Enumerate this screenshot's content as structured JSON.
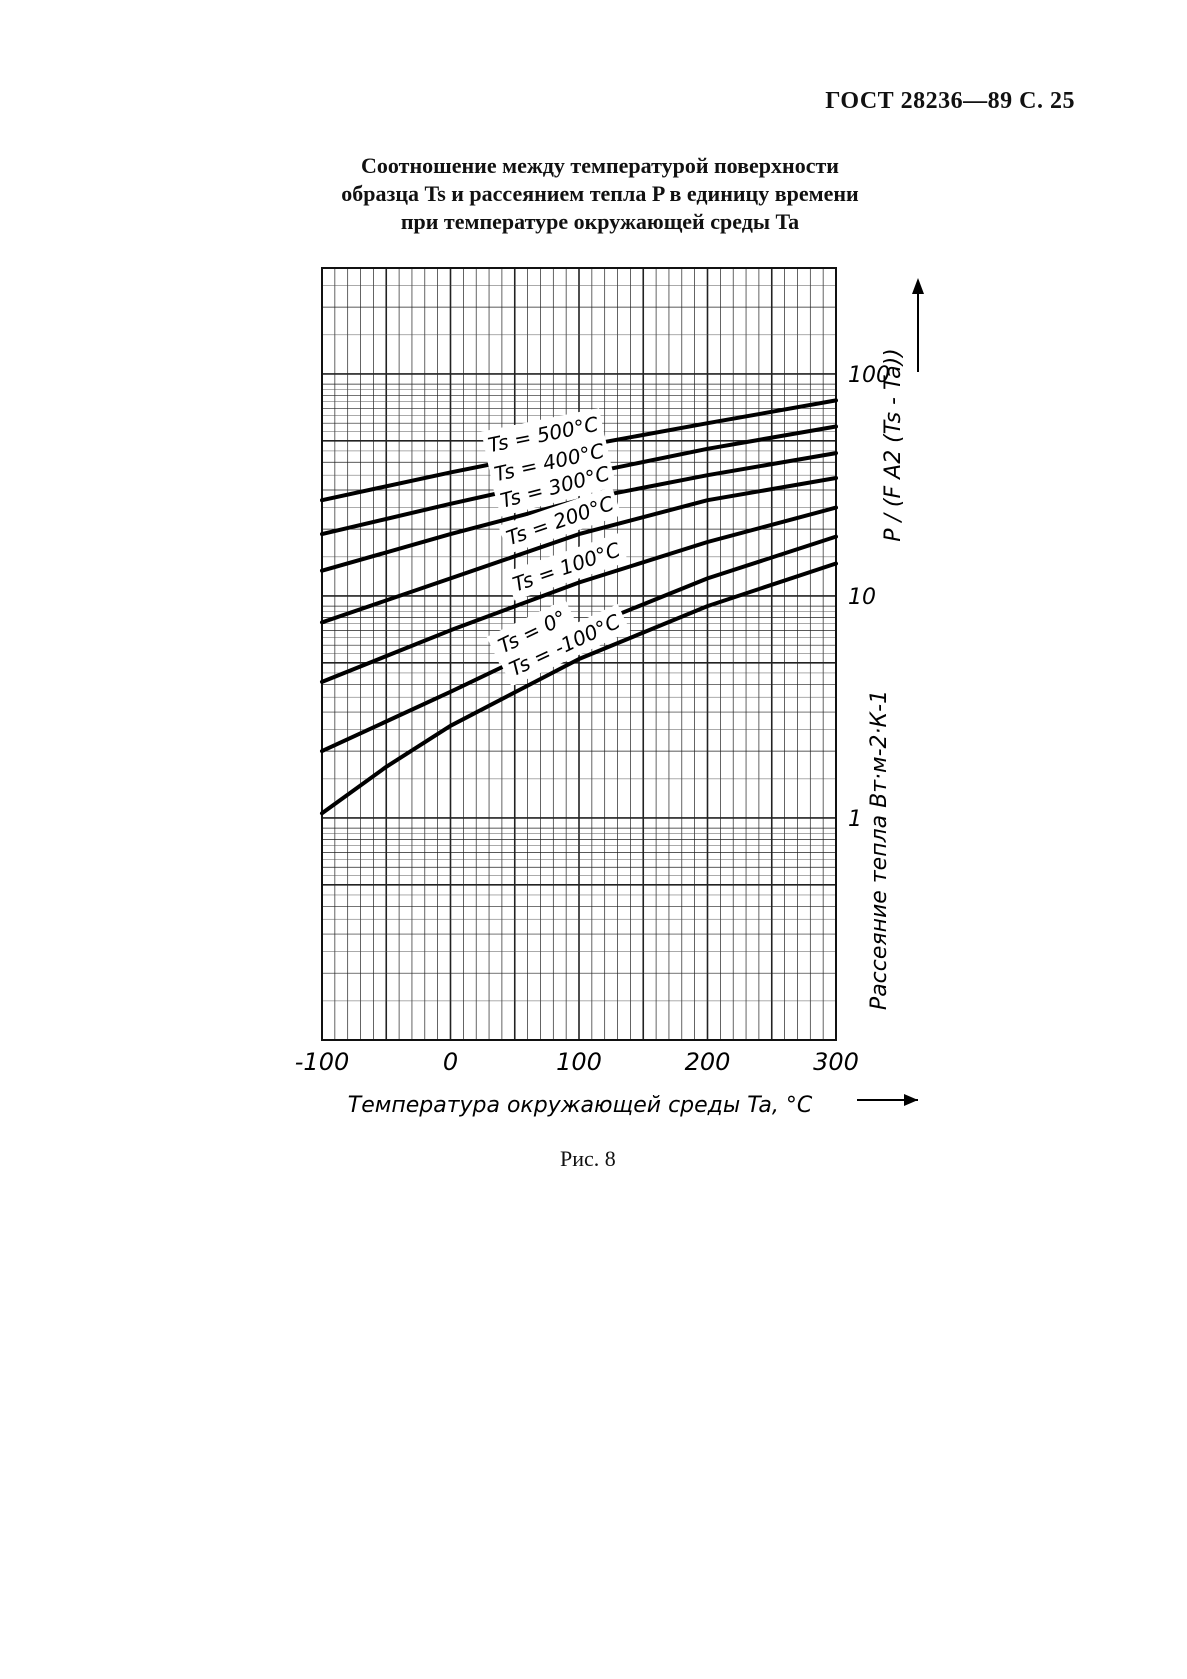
{
  "header": "ГОСТ 28236—89 С. 25",
  "title_lines": [
    "Соотношение между температурой поверхности",
    "образца Ts и рассеянием тепла P в единицу времени",
    "при температуре окружающей среды Ta"
  ],
  "caption": "Рис. 8",
  "chart_data": {
    "type": "line",
    "xlabel": "Температура окружающей среды Ta, °C",
    "ylabel": "Рассеяние тепла Вт·м-2·К-1",
    "ylabel_formula": "P / (F A2 (Ts - Ta))",
    "xlim": [
      -100,
      300
    ],
    "ylim": [
      0.1,
      300
    ],
    "y_scale": "log",
    "x_ticks": [
      "-100",
      "0",
      "100",
      "200",
      "300"
    ],
    "y_ticks": [
      "1",
      "10",
      "100"
    ],
    "grid": true,
    "series": [
      {
        "name": "Ts = 500°C",
        "x": [
          -100,
          0,
          100,
          200,
          300
        ],
        "y": [
          27,
          36,
          47,
          60,
          76
        ]
      },
      {
        "name": "Ts = 400°C",
        "x": [
          -100,
          0,
          100,
          200,
          300
        ],
        "y": [
          19,
          26,
          35,
          46,
          58
        ]
      },
      {
        "name": "Ts = 300°C",
        "x": [
          -100,
          0,
          100,
          200,
          300
        ],
        "y": [
          13,
          19,
          27,
          35,
          44
        ]
      },
      {
        "name": "Ts = 200°C",
        "x": [
          -100,
          0,
          100,
          200,
          300
        ],
        "y": [
          7.6,
          12,
          19,
          27,
          34
        ]
      },
      {
        "name": "Ts = 100°C",
        "x": [
          -100,
          0,
          100,
          200,
          300
        ],
        "y": [
          4.1,
          7,
          11.5,
          17.5,
          25
        ]
      },
      {
        "name": "Ts = 0°",
        "x": [
          -100,
          0,
          100,
          200,
          300
        ],
        "y": [
          2,
          3.7,
          7,
          12,
          18.5
        ]
      },
      {
        "name": "Ts = -100°C",
        "x": [
          -100,
          -50,
          0,
          100,
          200,
          300
        ],
        "y": [
          1.05,
          1.7,
          2.6,
          5.2,
          9,
          14
        ]
      }
    ]
  }
}
